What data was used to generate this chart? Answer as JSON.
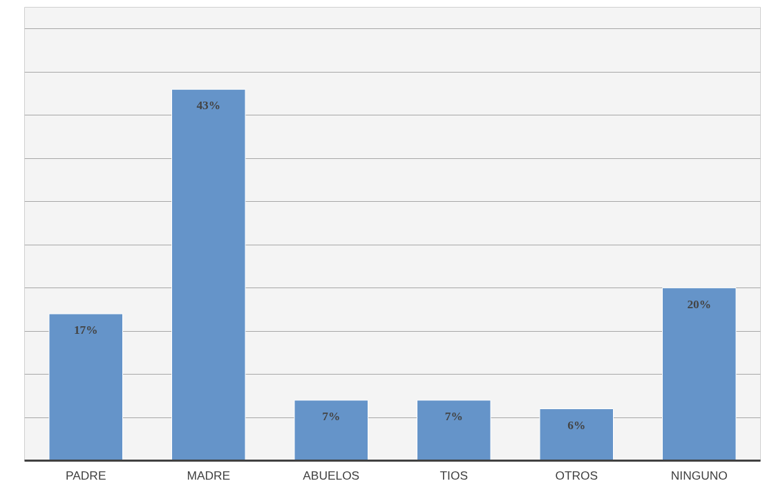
{
  "chart_data": {
    "type": "bar",
    "categories": [
      "PADRE",
      "MADRE",
      "ABUELOS",
      "TIOS",
      "OTROS",
      "NINGUNO"
    ],
    "values": [
      17,
      43,
      7,
      7,
      6,
      20
    ],
    "color": "#6594c9",
    "value_labels": [
      "17%",
      "43%",
      "7%",
      "7%",
      "6%",
      "20%"
    ],
    "ylim": [
      0,
      52.5
    ],
    "yticks": [
      {
        "value": 0,
        "label": null
      },
      {
        "value": 5,
        "label": null
      },
      {
        "value": 10,
        "label": null
      },
      {
        "value": 15,
        "label": null
      },
      {
        "value": 20,
        "label": null
      },
      {
        "value": 25,
        "label": null
      },
      {
        "value": 30,
        "label": null
      },
      {
        "value": 35,
        "label": null
      },
      {
        "value": 40,
        "label": null
      },
      {
        "value": 45,
        "label": null
      },
      {
        "value": 50,
        "label": null
      }
    ],
    "grid": "y",
    "tick_labels": "x"
  }
}
